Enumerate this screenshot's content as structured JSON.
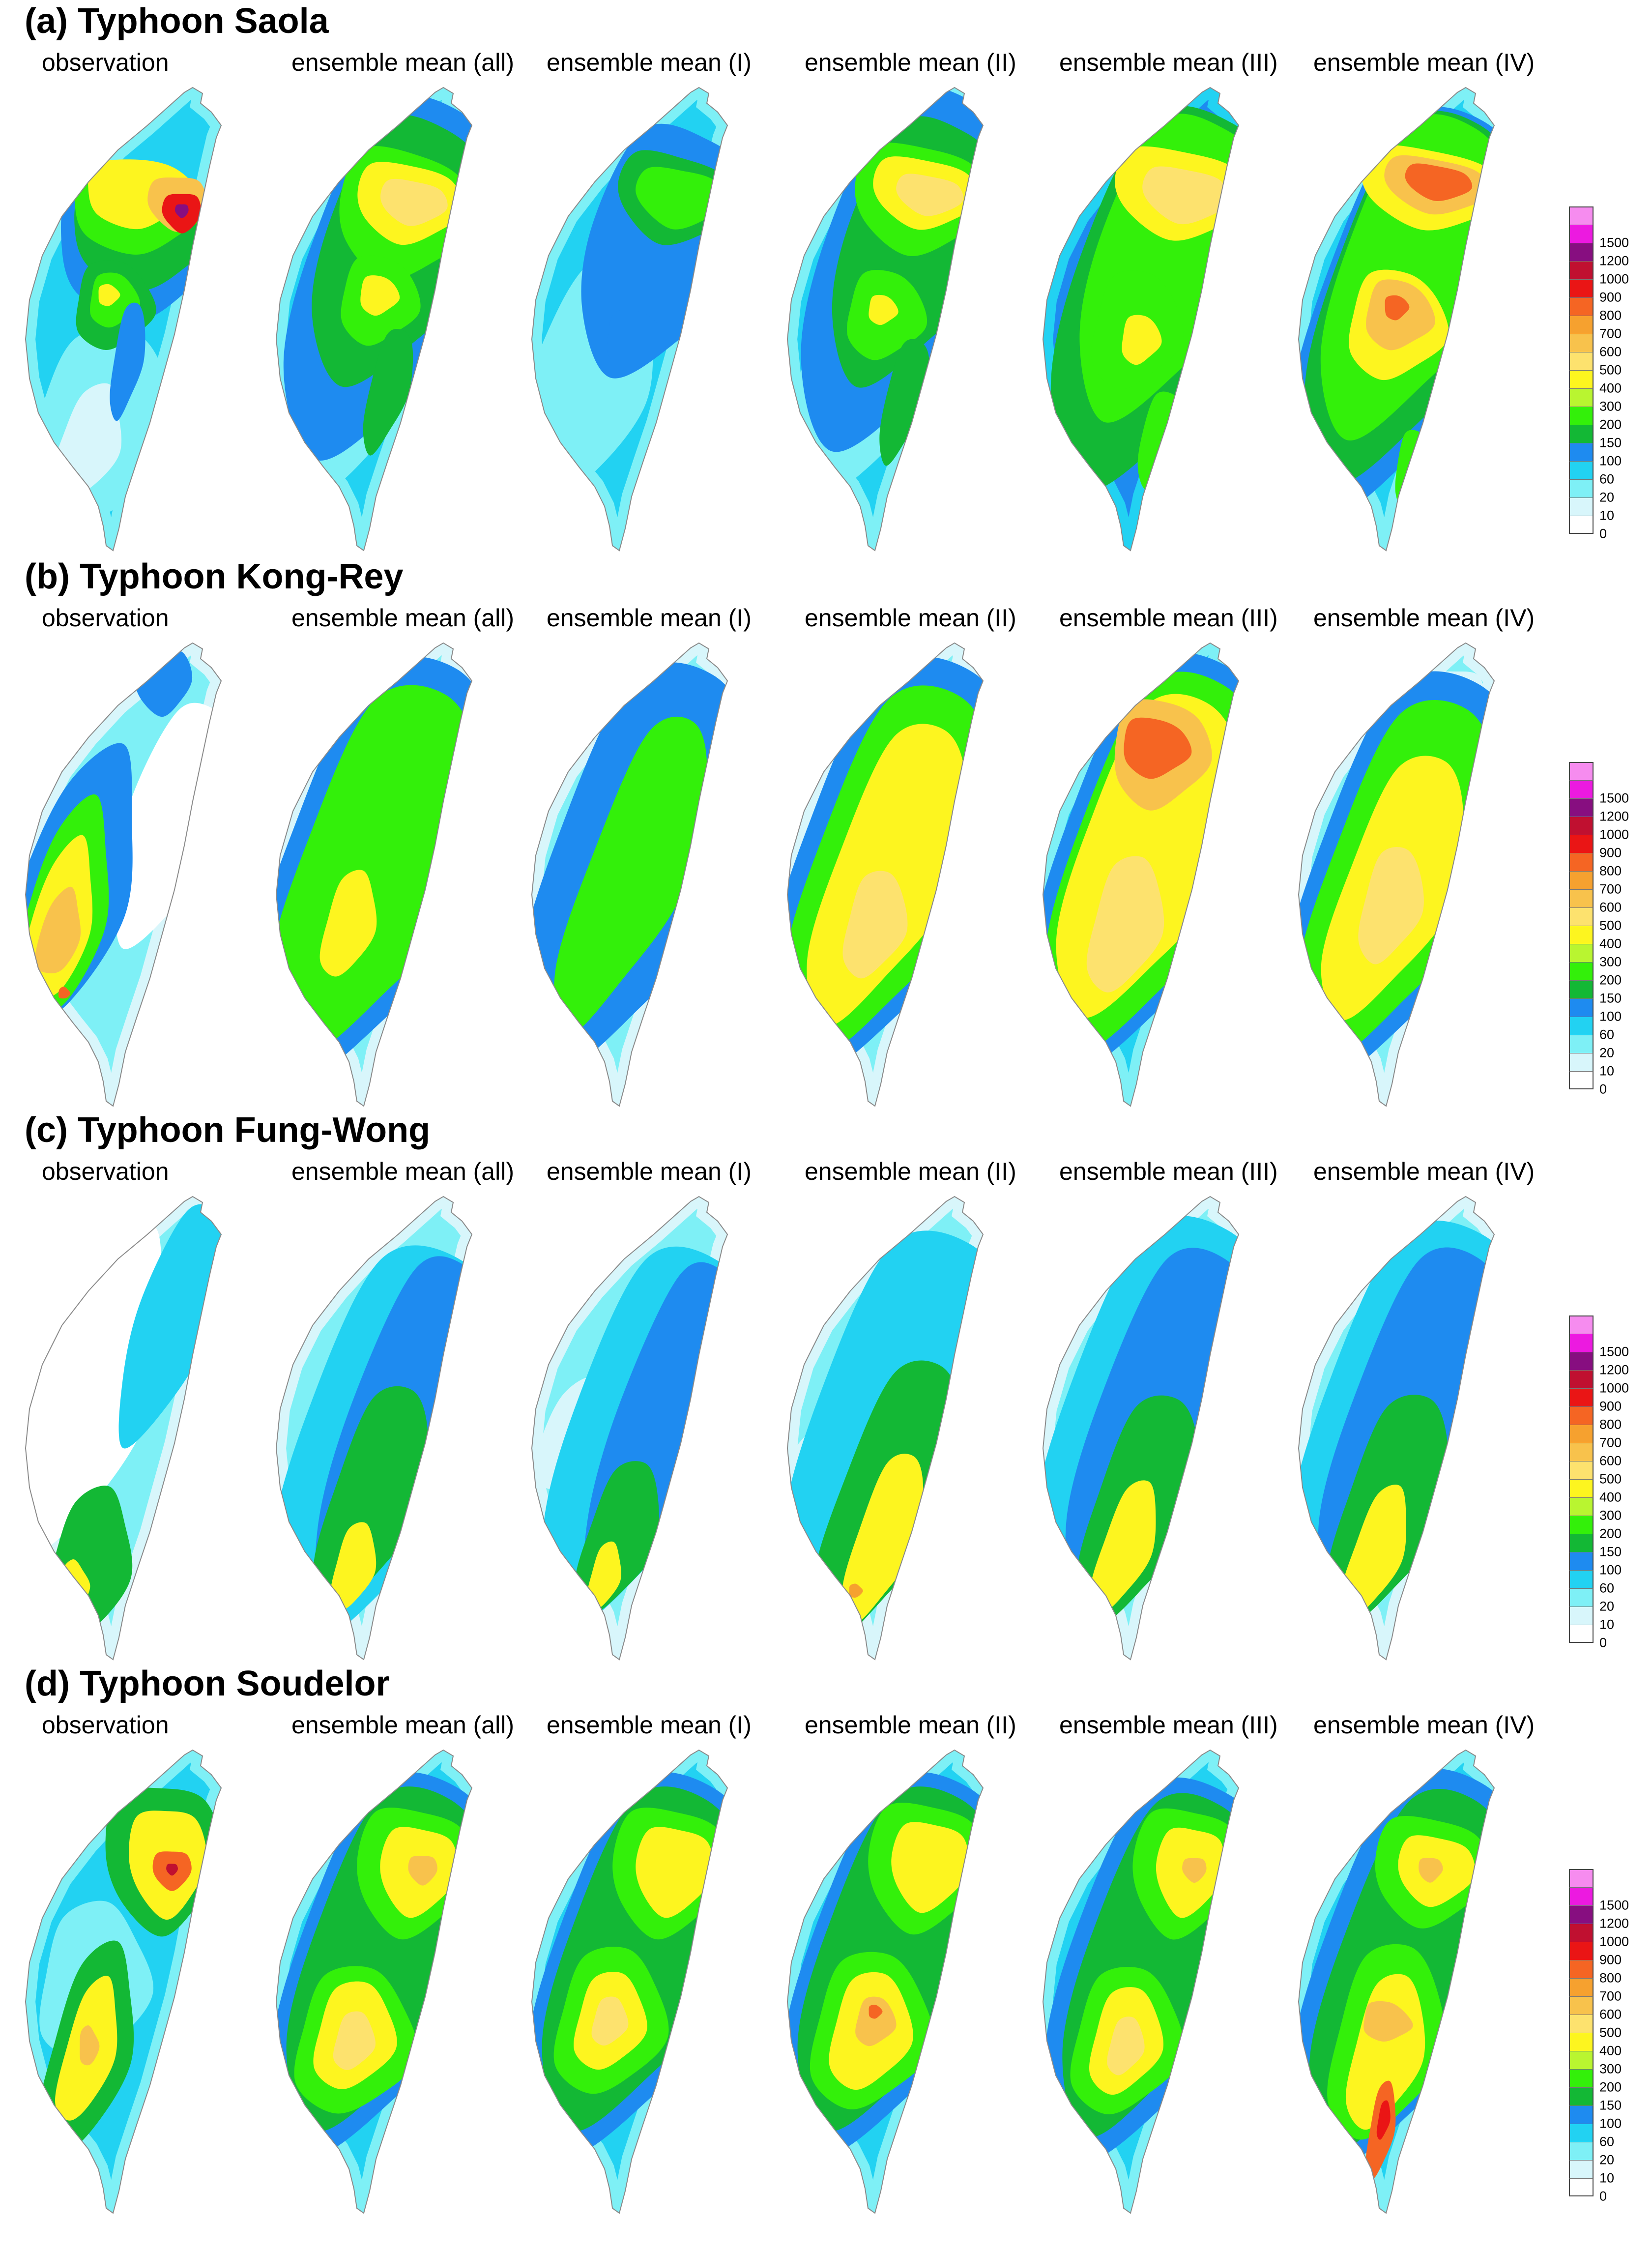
{
  "figure": {
    "scale": {
      "labels": [
        "0",
        "10",
        "20",
        "60",
        "100",
        "150",
        "200",
        "300",
        "400",
        "500",
        "600",
        "700",
        "800",
        "900",
        "1000",
        "1200",
        "1500"
      ],
      "colors": [
        "#ffffff",
        "#d8f6fb",
        "#7ef0f6",
        "#22d2f2",
        "#1e8bf0",
        "#13b835",
        "#33f00a",
        "#b9f530",
        "#fdf51f",
        "#fde26e",
        "#f8c24c",
        "#f6a12f",
        "#f56523",
        "#ea1515",
        "#c01030",
        "#870e80",
        "#ec1ae0",
        "#f68cef"
      ]
    },
    "panels": [
      {
        "title": "(a) Typhoon Saola",
        "columns": [
          "observation",
          "ensemble mean (all)",
          "ensemble mean (I)",
          "ensemble mean (II)",
          "ensemble mean (III)",
          "ensemble mean (IV)"
        ]
      },
      {
        "title": "(b) Typhoon Kong-Rey",
        "columns": [
          "observation",
          "ensemble mean (all)",
          "ensemble mean (I)",
          "ensemble mean (II)",
          "ensemble mean (III)",
          "ensemble mean (IV)"
        ]
      },
      {
        "title": "(c) Typhoon Fung-Wong",
        "columns": [
          "observation",
          "ensemble mean (all)",
          "ensemble mean (I)",
          "ensemble mean (II)",
          "ensemble mean (III)",
          "ensemble mean (IV)"
        ]
      },
      {
        "title": "(d) Typhoon Soudelor",
        "columns": [
          "observation",
          "ensemble mean (all)",
          "ensemble mean (I)",
          "ensemble mean (II)",
          "ensemble mean (III)",
          "ensemble mean (IV)"
        ]
      }
    ]
  }
}
